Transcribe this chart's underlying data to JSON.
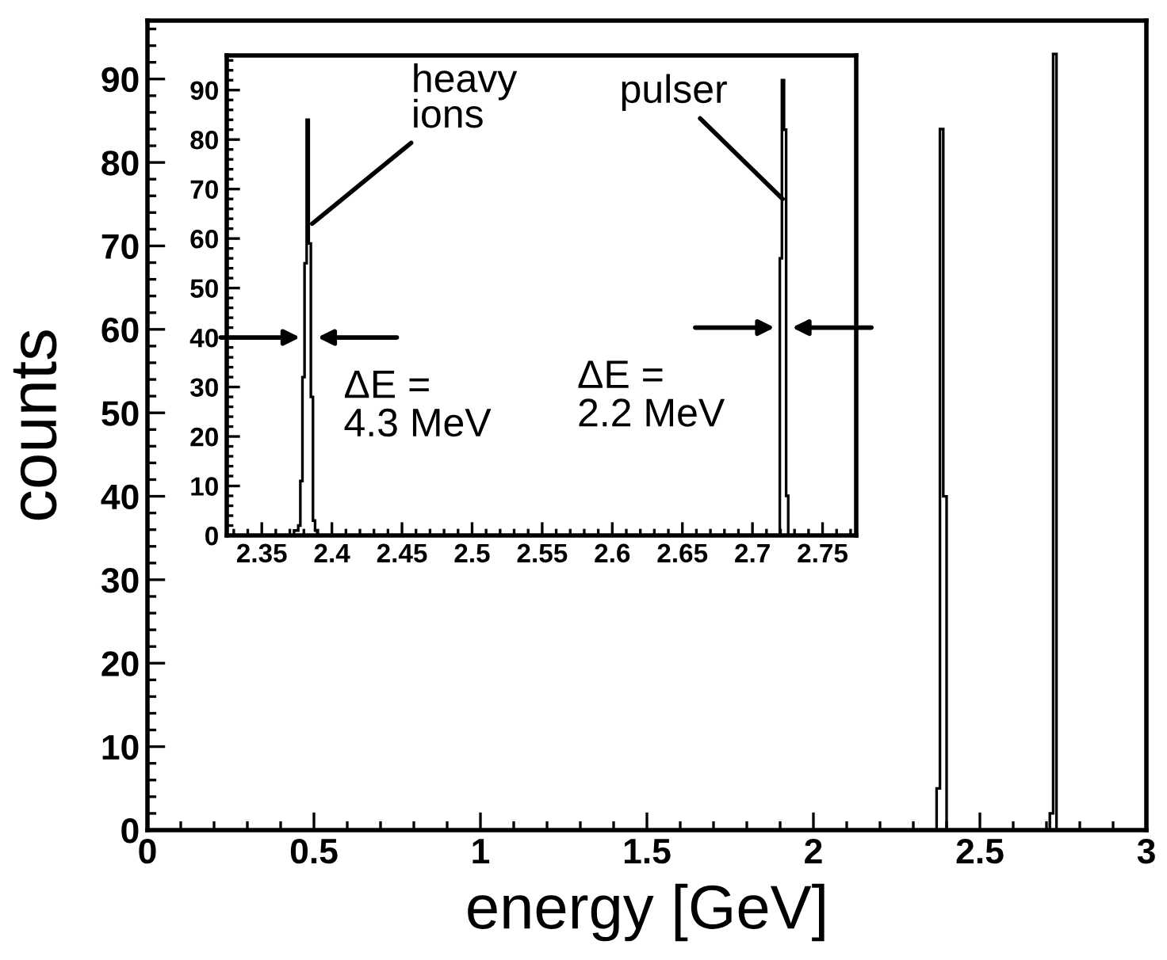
{
  "chart_data": [
    {
      "type": "histogram",
      "xlabel": "energy [GeV]",
      "ylabel": "counts",
      "color": "#000000",
      "bins": [
        0,
        2.37,
        2.38,
        2.39,
        2.4,
        2.71,
        2.72,
        2.73,
        3
      ],
      "values": [
        0,
        5,
        84,
        40,
        0,
        2,
        93,
        0
      ],
      "xlim": [
        0,
        3
      ],
      "ylim": [
        0,
        97
      ],
      "xticks": [
        0,
        0.5,
        1,
        1.5,
        2,
        2.5,
        3
      ],
      "yticks": [
        0,
        10,
        20,
        30,
        40,
        50,
        60,
        70,
        80,
        90
      ],
      "grid": false,
      "legend": false
    },
    {
      "type": "histogram",
      "color": "#000000",
      "bins": [
        2.373,
        2.3745,
        2.376,
        2.3775,
        2.379,
        2.3805,
        2.382,
        2.3835,
        2.385,
        2.3865,
        2.388,
        2.3895,
        2.7195,
        2.721,
        2.7225,
        2.724,
        2.7255
      ],
      "values": [
        1,
        1,
        2,
        11,
        32,
        55,
        84,
        59,
        28,
        3,
        1,
        0,
        56,
        92,
        82,
        8
      ],
      "xlim": [
        2.325,
        2.774
      ],
      "ylim": [
        0,
        97
      ],
      "xticks": [
        2.35,
        2.4,
        2.45,
        2.5,
        2.55,
        2.6,
        2.65,
        2.7,
        2.75
      ],
      "yticks": [
        0,
        10,
        20,
        30,
        40,
        50,
        60,
        70,
        80,
        90
      ],
      "grid": false,
      "legend": false,
      "annotations": [
        {
          "text": "heavy\nions",
          "x": 2.386,
          "y": 63
        },
        {
          "text": "pulser",
          "x": 2.7215,
          "y": 68
        },
        {
          "text": "ΔE =\n4.3 MeV",
          "x": 2.3835,
          "y": 40
        },
        {
          "text": "ΔE =\n2.2 MeV",
          "x": 2.722,
          "y": 42
        }
      ]
    }
  ]
}
